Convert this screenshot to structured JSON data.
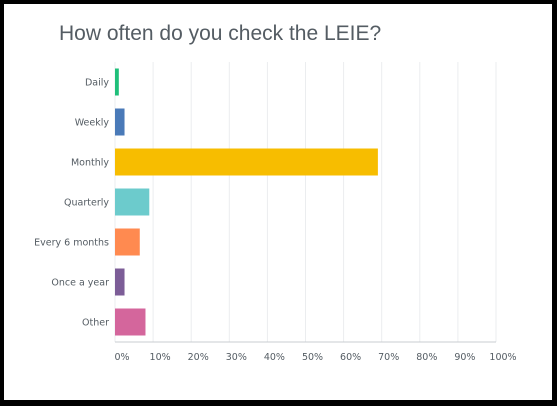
{
  "chart_data": {
    "type": "bar",
    "orientation": "horizontal",
    "title": "How often do you check the LEIE?",
    "xlabel": "",
    "ylabel": "",
    "categories": [
      "Daily",
      "Weekly",
      "Monthly",
      "Quarterly",
      "Every 6 months",
      "Once a year",
      "Other"
    ],
    "values": [
      1.0,
      2.5,
      69.0,
      9.0,
      6.5,
      2.5,
      8.0
    ],
    "colors": [
      "#1fbf7a",
      "#4a7ab8",
      "#f7bd00",
      "#6ccbcc",
      "#ff8a50",
      "#7c5d97",
      "#d4669c"
    ],
    "xlim": [
      0,
      100
    ],
    "xticks": [
      "0%",
      "10%",
      "20%",
      "30%",
      "40%",
      "50%",
      "60%",
      "70%",
      "80%",
      "90%",
      "100%"
    ],
    "grid": true,
    "legend": "none"
  }
}
